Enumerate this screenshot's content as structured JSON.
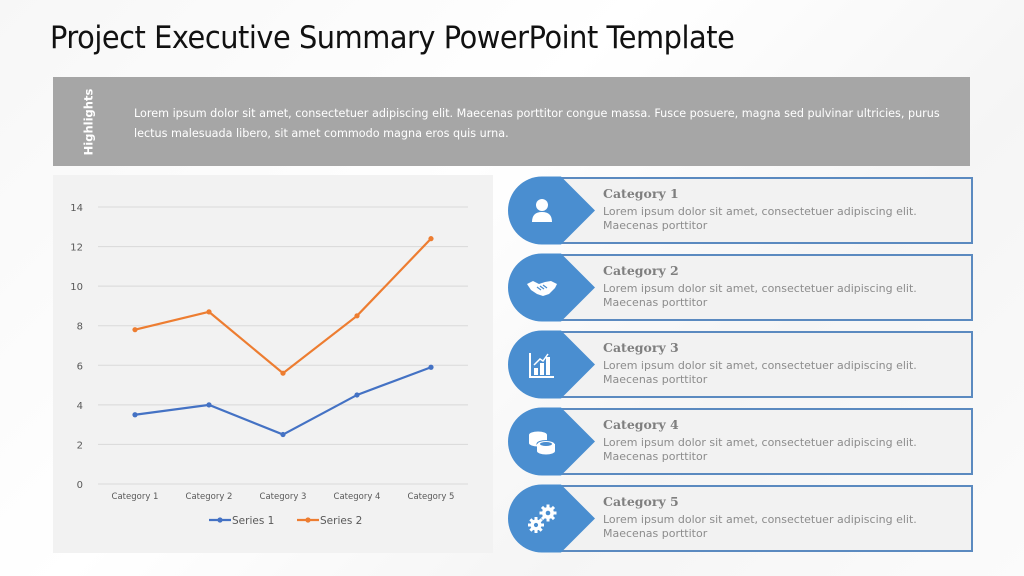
{
  "slide": {
    "title": "Project Executive Summary PowerPoint Template"
  },
  "highlights": {
    "label": "Highlights",
    "text": "Lorem ipsum  dolor sit amet, consectetuer adipiscing  elit.  Maecenas porttitor congue massa. Fusce posuere, magna sed pulvinar  ultricies, purus lectus malesuada libero,  sit amet commodo magna eros quis  urna."
  },
  "colors": {
    "accent_blue": "#5b8ac0",
    "drop_blue": "#4a8ed0",
    "series1": "#4472c4",
    "series2": "#ed7d31",
    "highlights_bg": "#a6a6a6",
    "panel_bg": "#f2f2f2"
  },
  "chart_data": {
    "type": "line",
    "title": "",
    "xlabel": "",
    "ylabel": "",
    "categories": [
      "Category 1",
      "Category 2",
      "Category 3",
      "Category 4",
      "Category 5"
    ],
    "series": [
      {
        "name": "Series 1",
        "values": [
          3.5,
          4.0,
          2.5,
          4.5,
          5.9
        ],
        "color": "#4472c4"
      },
      {
        "name": "Series 2",
        "values": [
          7.8,
          8.7,
          5.6,
          8.5,
          12.4
        ],
        "color": "#ed7d31"
      }
    ],
    "ylim": [
      0,
      14
    ],
    "yticks": [
      "0",
      "2",
      "4",
      "6",
      "8",
      "10",
      "12",
      "14"
    ],
    "grid": true,
    "legend_position": "bottom"
  },
  "cards": [
    {
      "title": "Category 1",
      "desc": "Lorem ipsum  dolor sit  amet, consectetuer adipiscing  elit. Maecenas porttitor",
      "icon": "person-icon"
    },
    {
      "title": "Category 2",
      "desc": "Lorem ipsum  dolor sit  amet, consectetuer adipiscing  elit. Maecenas porttitor",
      "icon": "handshake-icon"
    },
    {
      "title": "Category 3",
      "desc": "Lorem ipsum  dolor sit  amet, consectetuer adipiscing  elit. Maecenas porttitor",
      "icon": "bar-chart-icon"
    },
    {
      "title": "Category 4",
      "desc": "Lorem ipsum  dolor sit  amet, consectetuer adipiscing  elit. Maecenas porttitor",
      "icon": "coins-icon"
    },
    {
      "title": "Category 5",
      "desc": "Lorem ipsum  dolor sit  amet, consectetuer adipiscing  elit. Maecenas porttitor",
      "icon": "gears-icon"
    }
  ]
}
